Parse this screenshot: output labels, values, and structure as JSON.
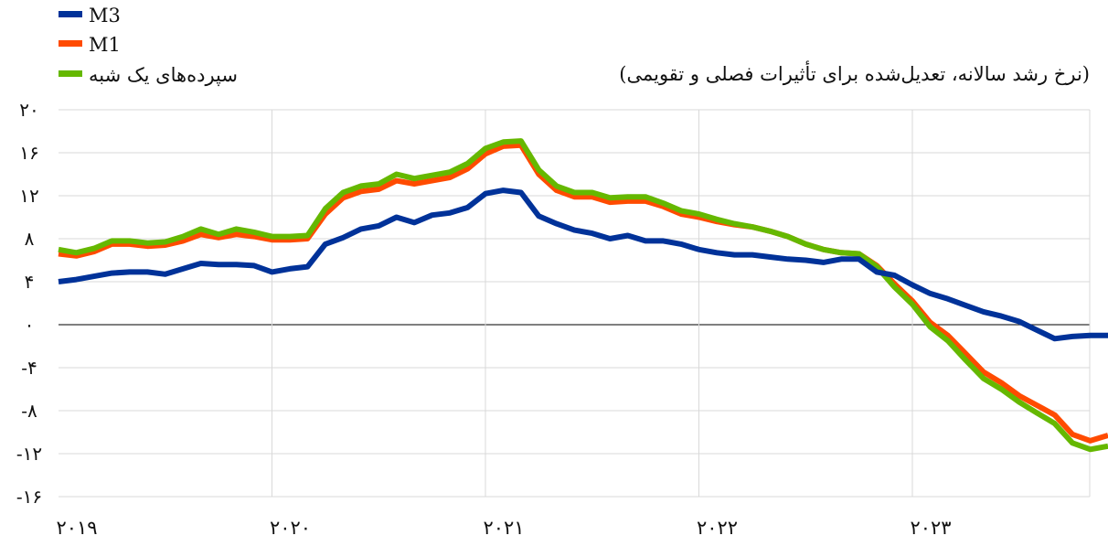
{
  "chart_data": {
    "type": "line",
    "subtitle": "(نرخ رشد سالانه، تعدیل‌شده برای تأثیرات فصلی و تقویمی)",
    "x_tick_labels": [
      "۲۰۱۹",
      "۲۰۲۰",
      "۲۰۲۱",
      "۲۰۲۲",
      "۲۰۲۳"
    ],
    "y_tick_labels": [
      "۲۰",
      "۱۶",
      "۱۲",
      "۸",
      "۴",
      "۰",
      "-۴",
      "-۸",
      "-۱۲",
      "-۱۶"
    ],
    "y_ticks": [
      20,
      16,
      12,
      8,
      4,
      0,
      -4,
      -8,
      -12,
      -16
    ],
    "ylim": [
      -16,
      20
    ],
    "xlim": [
      "2019-01",
      "2024-02"
    ],
    "grid": true,
    "legend_position": "top-left",
    "x": [
      "2019-01",
      "2019-02",
      "2019-03",
      "2019-04",
      "2019-05",
      "2019-06",
      "2019-07",
      "2019-08",
      "2019-09",
      "2019-10",
      "2019-11",
      "2019-12",
      "2020-01",
      "2020-02",
      "2020-03",
      "2020-04",
      "2020-05",
      "2020-06",
      "2020-07",
      "2020-08",
      "2020-09",
      "2020-10",
      "2020-11",
      "2020-12",
      "2021-01",
      "2021-02",
      "2021-03",
      "2021-04",
      "2021-05",
      "2021-06",
      "2021-07",
      "2021-08",
      "2021-09",
      "2021-10",
      "2021-11",
      "2021-12",
      "2022-01",
      "2022-02",
      "2022-03",
      "2022-04",
      "2022-05",
      "2022-06",
      "2022-07",
      "2022-08",
      "2022-09",
      "2022-10",
      "2022-11",
      "2022-12",
      "2023-01",
      "2023-02",
      "2023-03",
      "2023-04",
      "2023-05",
      "2023-06",
      "2023-07",
      "2023-08",
      "2023-09",
      "2023-10",
      "2023-11",
      "2023-12"
    ],
    "series": [
      {
        "name": "M3",
        "color": "#003299",
        "values": [
          4.0,
          4.2,
          4.5,
          4.8,
          4.9,
          4.9,
          4.7,
          5.2,
          5.7,
          5.6,
          5.6,
          5.5,
          4.9,
          5.2,
          5.4,
          7.5,
          8.1,
          8.9,
          9.2,
          10.0,
          9.5,
          10.2,
          10.4,
          10.9,
          12.2,
          12.5,
          12.3,
          10.1,
          9.4,
          8.8,
          8.5,
          8.0,
          8.3,
          7.8,
          7.8,
          7.5,
          7.0,
          6.7,
          6.5,
          6.5,
          6.3,
          6.1,
          6.0,
          5.8,
          6.1,
          6.1,
          4.9,
          4.6,
          3.7,
          2.9,
          2.4,
          1.8,
          1.2,
          0.8,
          0.3,
          -0.5,
          -1.3,
          -1.1,
          -1.0,
          -1.0
        ]
      },
      {
        "name": "M1",
        "color": "#ff4b00",
        "values": [
          6.6,
          6.4,
          6.8,
          7.5,
          7.5,
          7.3,
          7.4,
          7.8,
          8.4,
          8.1,
          8.4,
          8.2,
          7.9,
          7.9,
          8.0,
          10.3,
          11.8,
          12.4,
          12.6,
          13.4,
          13.1,
          13.4,
          13.7,
          14.5,
          15.9,
          16.6,
          16.7,
          14.0,
          12.5,
          11.9,
          11.9,
          11.4,
          11.5,
          11.5,
          11.0,
          10.3,
          10.0,
          9.6,
          9.3,
          9.1,
          8.7,
          8.2,
          7.5,
          7.0,
          6.7,
          6.6,
          5.5,
          3.8,
          2.2,
          0.2,
          -1.0,
          -2.7,
          -4.4,
          -5.4,
          -6.6,
          -7.5,
          -8.4,
          -10.2,
          -10.8,
          -10.3
        ]
      },
      {
        "name": "سپرده‌های یک شبه",
        "color": "#65b800",
        "values": [
          7.0,
          6.7,
          7.1,
          7.8,
          7.8,
          7.6,
          7.7,
          8.2,
          8.9,
          8.4,
          8.9,
          8.6,
          8.2,
          8.2,
          8.3,
          10.8,
          12.3,
          12.9,
          13.1,
          14.0,
          13.6,
          13.9,
          14.2,
          15.0,
          16.4,
          17.0,
          17.1,
          14.4,
          12.9,
          12.3,
          12.3,
          11.8,
          11.9,
          11.9,
          11.3,
          10.6,
          10.3,
          9.8,
          9.4,
          9.1,
          8.7,
          8.2,
          7.5,
          7.0,
          6.7,
          6.6,
          5.4,
          3.5,
          1.9,
          -0.2,
          -1.5,
          -3.3,
          -5.0,
          -6.0,
          -7.2,
          -8.2,
          -9.2,
          -11.0,
          -11.6,
          -11.3
        ]
      }
    ]
  }
}
